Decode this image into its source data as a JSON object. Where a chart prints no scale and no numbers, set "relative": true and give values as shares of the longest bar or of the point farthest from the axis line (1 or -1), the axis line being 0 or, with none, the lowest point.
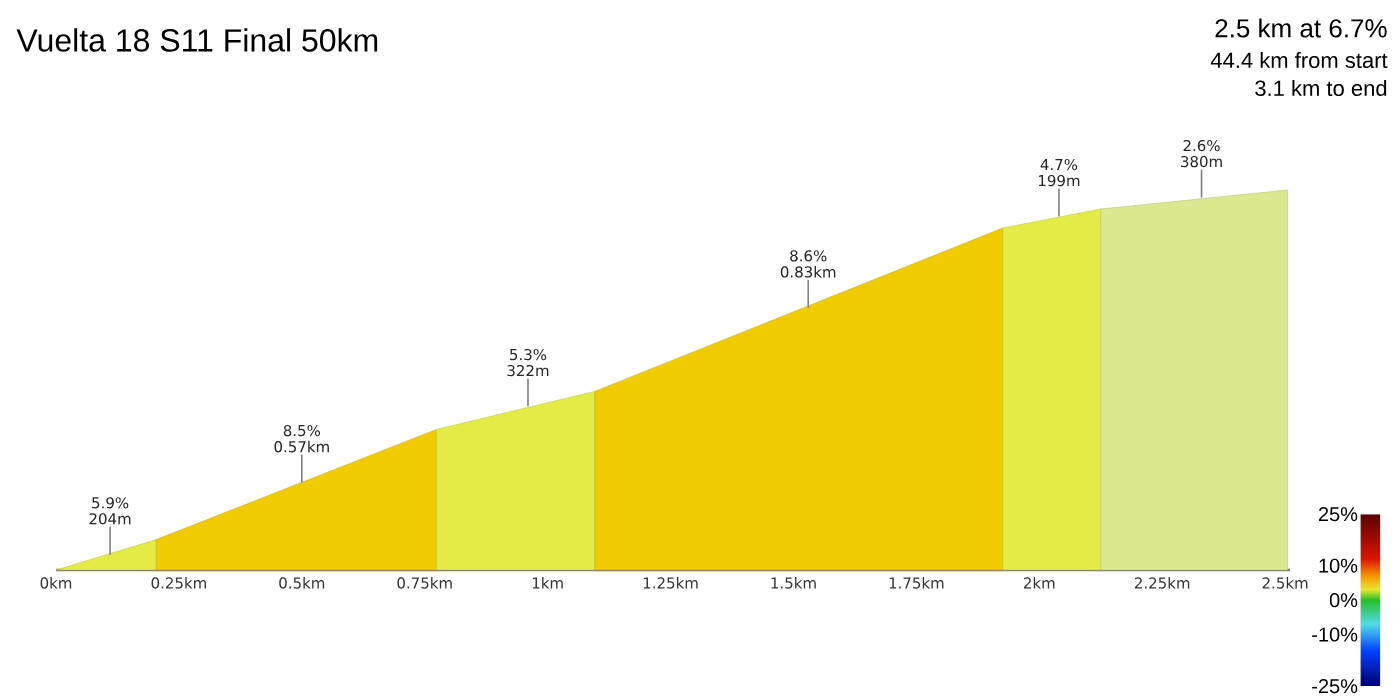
{
  "chart_data": {
    "type": "area",
    "title": "Vuelta 18 S11 Final 50km",
    "subtitle": "2.5 km at 6.7%",
    "relative": true,
    "xlim": [
      0,
      2.51
    ],
    "xticks": [
      {
        "value": 0,
        "label": "0km"
      },
      {
        "value": 0.25,
        "label": "0.25km"
      },
      {
        "value": 0.5,
        "label": "0.5km"
      },
      {
        "value": 0.75,
        "label": "0.75km"
      },
      {
        "value": 1,
        "label": "1km"
      },
      {
        "value": 1.25,
        "label": "1.25km"
      },
      {
        "value": 1.5,
        "label": "1.5km"
      },
      {
        "value": 1.75,
        "label": "1.75km"
      },
      {
        "value": 2,
        "label": "2km"
      },
      {
        "value": 2.25,
        "label": "2.25km"
      },
      {
        "value": 2.5,
        "label": "2.5km"
      }
    ],
    "series": [
      {
        "color": "#e3eb47",
        "x": [
          0,
          0.204
        ],
        "values": [
          0,
          0.08
        ]
      },
      {
        "color": "#f0cb00",
        "x": [
          0.204,
          0.774
        ],
        "values": [
          0.08,
          0.37
        ]
      },
      {
        "color": "#e3eb47",
        "x": [
          0.774,
          1.096
        ],
        "values": [
          0.37,
          0.47
        ]
      },
      {
        "color": "#f0cb00",
        "x": [
          1.096,
          1.926
        ],
        "values": [
          0.47,
          0.9
        ]
      },
      {
        "color": "#e3eb47",
        "x": [
          1.926,
          2.125
        ],
        "values": [
          0.9,
          0.95
        ]
      },
      {
        "color": "#dbe88f",
        "x": [
          2.125,
          2.505
        ],
        "values": [
          0.95,
          1.0
        ]
      }
    ],
    "clim": [
      -25,
      25
    ],
    "cticks": [
      {
        "value": 25,
        "label": "25%"
      },
      {
        "value": 10,
        "label": "10%"
      },
      {
        "value": 0,
        "label": "0%"
      },
      {
        "value": -10,
        "label": "-10%"
      },
      {
        "value": -25,
        "label": "-25%"
      }
    ],
    "annotations": [
      "44.4 km from start",
      "3.1 km to end",
      {
        "text": "5.9%",
        "x": 0.11,
        "y": 0.04
      },
      {
        "text": "204m",
        "x": 0.11,
        "y": 0.04
      },
      {
        "text": "8.5%",
        "x": 0.5,
        "y": 0.23
      },
      {
        "text": "0.57km",
        "x": 0.5,
        "y": 0.23
      },
      {
        "text": "5.3%",
        "x": 0.96,
        "y": 0.43
      },
      {
        "text": "322m",
        "x": 0.96,
        "y": 0.43
      },
      {
        "text": "8.6%",
        "x": 1.53,
        "y": 0.69
      },
      {
        "text": "0.83km",
        "x": 1.53,
        "y": 0.69
      },
      {
        "text": "4.7%",
        "x": 2.04,
        "y": 0.93
      },
      {
        "text": "199m",
        "x": 2.04,
        "y": 0.93
      },
      {
        "text": "2.6%",
        "x": 2.33,
        "y": 0.98
      },
      {
        "text": "380m",
        "x": 2.33,
        "y": 0.98
      }
    ]
  }
}
